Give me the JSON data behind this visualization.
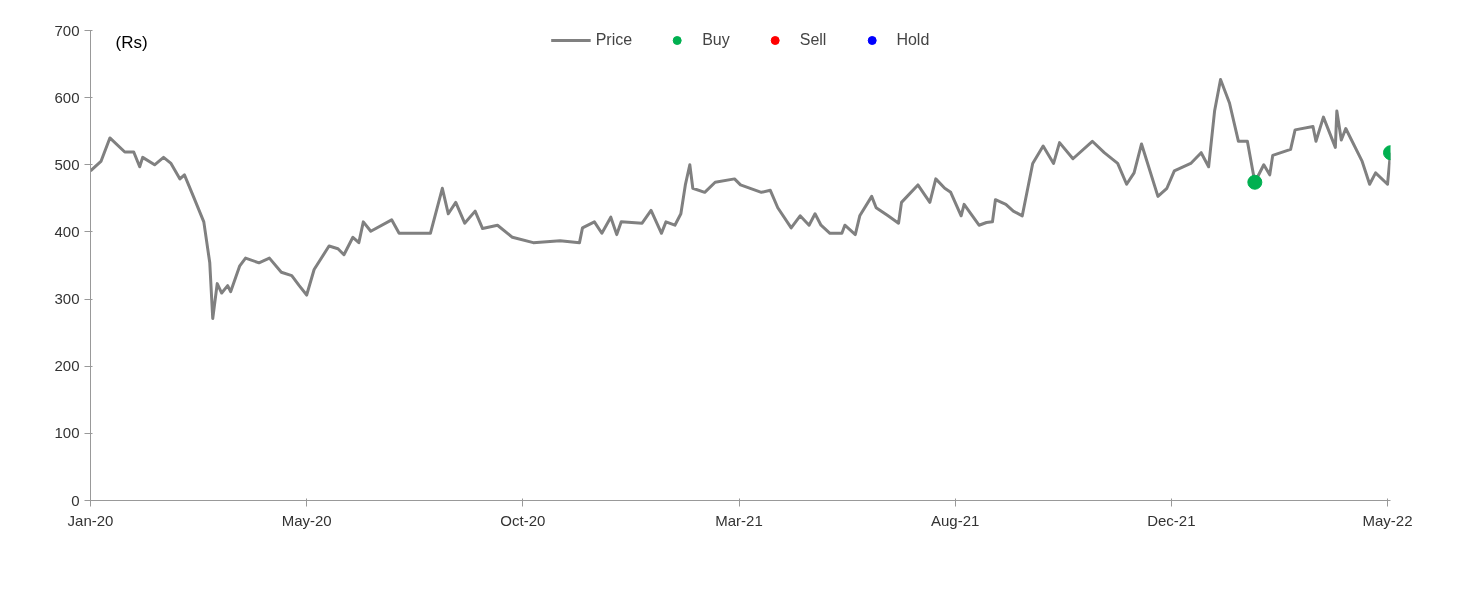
{
  "chart_data": {
    "type": "line",
    "ylabel": "(Rs)",
    "xlim": [
      "2020-01-01",
      "2022-05-22"
    ],
    "xticks": [
      {
        "value": "2020-01-01",
        "label": "Jan-20"
      },
      {
        "value": "2020-05-25",
        "label": "May-20"
      },
      {
        "value": "2020-10-17",
        "label": "Oct-20"
      },
      {
        "value": "2021-03-11",
        "label": "Mar-21"
      },
      {
        "value": "2021-08-03",
        "label": "Aug-21"
      },
      {
        "value": "2021-12-26",
        "label": "Dec-21"
      },
      {
        "value": "2022-05-20",
        "label": "May-22"
      }
    ],
    "ylim": [
      0,
      700
    ],
    "yticks": [
      0,
      100,
      200,
      300,
      400,
      500,
      600,
      700
    ],
    "grid": false,
    "legend": "top",
    "series": [
      {
        "name": "Price",
        "color": "#808080",
        "line_style": "solid",
        "marker": "none",
        "x": [
          "2020-01-01",
          "2020-01-08",
          "2020-01-14",
          "2020-01-24",
          "2020-01-30",
          "2020-02-03",
          "2020-02-05",
          "2020-02-13",
          "2020-02-19",
          "2020-02-24",
          "2020-03-01",
          "2020-03-04",
          "2020-03-10",
          "2020-03-17",
          "2020-03-21",
          "2020-03-23",
          "2020-03-26",
          "2020-03-29",
          "2020-04-02",
          "2020-04-04",
          "2020-04-10",
          "2020-04-14",
          "2020-04-23",
          "2020-04-30",
          "2020-05-08",
          "2020-05-15",
          "2020-05-20",
          "2020-05-25",
          "2020-05-30",
          "2020-06-09",
          "2020-06-15",
          "2020-06-19",
          "2020-06-25",
          "2020-06-29",
          "2020-07-02",
          "2020-07-07",
          "2020-07-21",
          "2020-07-26",
          "2020-08-01",
          "2020-08-16",
          "2020-08-24",
          "2020-08-28",
          "2020-09-02",
          "2020-09-08",
          "2020-09-15",
          "2020-09-20",
          "2020-09-30",
          "2020-10-10",
          "2020-10-24",
          "2020-11-11",
          "2020-11-24",
          "2020-11-26",
          "2020-12-04",
          "2020-12-09",
          "2020-12-15",
          "2020-12-19",
          "2020-12-22",
          "2021-01-05",
          "2021-01-11",
          "2021-01-18",
          "2021-01-21",
          "2021-01-27",
          "2021-01-31",
          "2021-02-03",
          "2021-02-06",
          "2021-02-08",
          "2021-02-16",
          "2021-02-23",
          "2021-03-08",
          "2021-03-12",
          "2021-03-26",
          "2021-04-01",
          "2021-04-06",
          "2021-04-15",
          "2021-04-21",
          "2021-04-27",
          "2021-05-01",
          "2021-05-05",
          "2021-05-11",
          "2021-05-19",
          "2021-05-21",
          "2021-05-28",
          "2021-05-31",
          "2021-06-08",
          "2021-06-11",
          "2021-06-19",
          "2021-06-26",
          "2021-06-28",
          "2021-07-09",
          "2021-07-17",
          "2021-07-21",
          "2021-07-27",
          "2021-07-31",
          "2021-08-07",
          "2021-08-09",
          "2021-08-19",
          "2021-08-24",
          "2021-08-28",
          "2021-08-30",
          "2021-09-06",
          "2021-09-11",
          "2021-09-17",
          "2021-09-24",
          "2021-10-01",
          "2021-10-08",
          "2021-10-12",
          "2021-10-21",
          "2021-11-03",
          "2021-11-11",
          "2021-11-20",
          "2021-11-26",
          "2021-12-01",
          "2021-12-06",
          "2021-12-17",
          "2021-12-23",
          "2021-12-28",
          "2022-01-08",
          "2022-01-15",
          "2022-01-20",
          "2022-01-24",
          "2022-01-28",
          "2022-02-03",
          "2022-02-09",
          "2022-02-15",
          "2022-02-20",
          "2022-02-26",
          "2022-03-02",
          "2022-03-04",
          "2022-03-16",
          "2022-03-19",
          "2022-03-31",
          "2022-04-02",
          "2022-04-07",
          "2022-04-15",
          "2022-04-16",
          "2022-04-19",
          "2022-04-22",
          "2022-05-03",
          "2022-05-08",
          "2022-05-12",
          "2022-05-20",
          "2022-05-22"
        ],
        "values": [
          491,
          505,
          540,
          519,
          519,
          497,
          511,
          500,
          511,
          502,
          479,
          485,
          453,
          415,
          354,
          271,
          323,
          309,
          320,
          311,
          349,
          361,
          354,
          361,
          340,
          335,
          320,
          306,
          344,
          379,
          375,
          366,
          392,
          384,
          415,
          401,
          418,
          398,
          398,
          398,
          465,
          427,
          444,
          413,
          431,
          405,
          410,
          392,
          384,
          387,
          384,
          406,
          415,
          398,
          422,
          396,
          415,
          413,
          432,
          398,
          415,
          410,
          427,
          470,
          500,
          465,
          459,
          474,
          479,
          470,
          459,
          462,
          436,
          406,
          424,
          410,
          427,
          410,
          398,
          398,
          410,
          396,
          424,
          453,
          436,
          424,
          413,
          444,
          470,
          444,
          479,
          465,
          459,
          424,
          441,
          410,
          414,
          415,
          448,
          441,
          431,
          424,
          502,
          528,
          502,
          533,
          509,
          535,
          518,
          502,
          471,
          488,
          531,
          453,
          465,
          491,
          502,
          518,
          497,
          580,
          627,
          592,
          535,
          535,
          474,
          500,
          485,
          514,
          523,
          552,
          557,
          535,
          571,
          526,
          580,
          537,
          554,
          505,
          471,
          488,
          471,
          518
        ]
      },
      {
        "name": "Buy",
        "type": "scatter",
        "color": "#00b050",
        "marker": "circle",
        "x": [
          "2022-02-20",
          "2022-05-22"
        ],
        "values": [
          474,
          518
        ]
      },
      {
        "name": "Sell",
        "type": "scatter",
        "color": "#ff0000",
        "marker": "circle"
      },
      {
        "name": "Hold",
        "type": "scatter",
        "color": "#0000ff",
        "marker": "circle"
      }
    ]
  }
}
